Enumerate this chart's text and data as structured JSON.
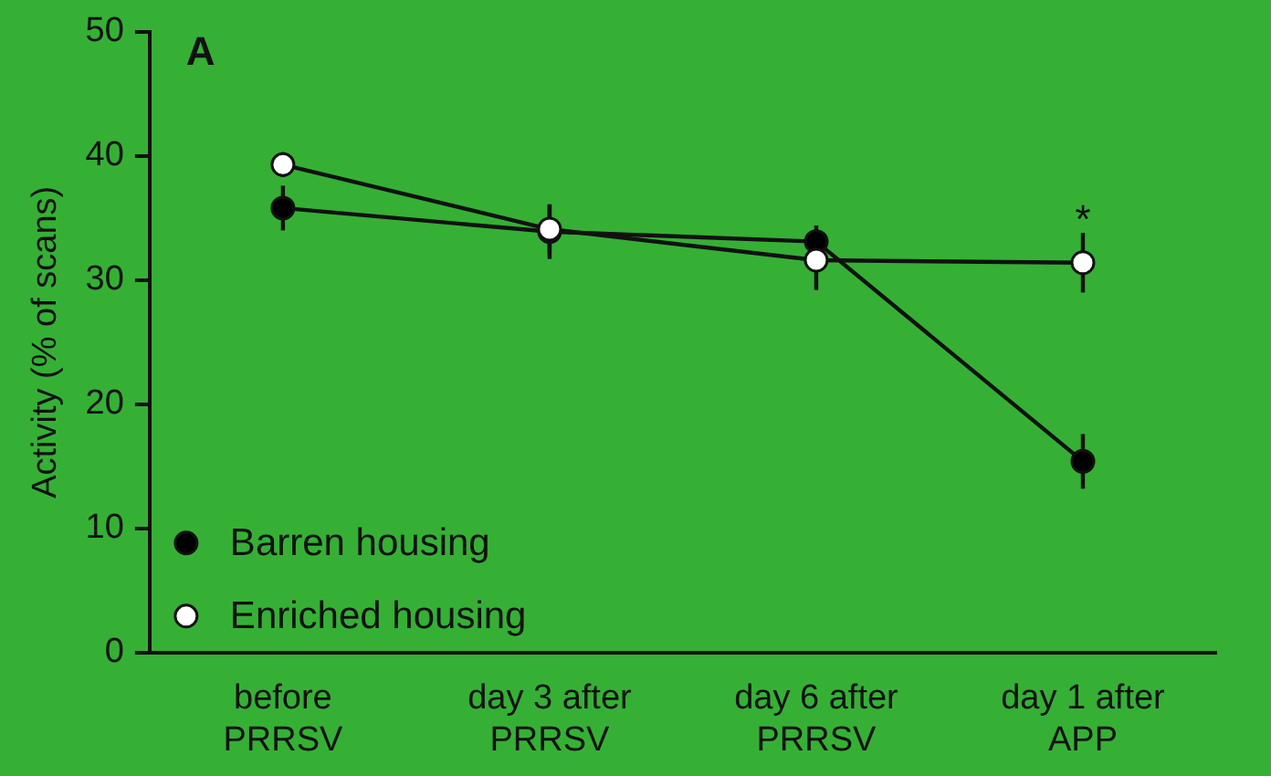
{
  "chart_data": {
    "type": "line",
    "ylabel": "Activity (% of scans)",
    "categories": [
      "before PRRSV",
      "day 3 after PRRSV",
      "day 6 after PRRSV",
      "day 1 after APP"
    ],
    "series": [
      {
        "name": "Barren housing",
        "color": "#000000",
        "values": [
          35.8,
          33.9,
          33.1,
          15.4
        ],
        "errors": [
          1.8,
          2.2,
          1.3,
          2.2
        ]
      },
      {
        "name": "Enriched housing",
        "color": "#ffffff",
        "values": [
          39.3,
          34.1,
          31.6,
          31.4
        ],
        "errors": [
          1.0,
          2.0,
          2.4,
          2.4
        ]
      }
    ],
    "ylim": [
      0,
      50
    ],
    "yticks": [
      0,
      10,
      20,
      30,
      40,
      50
    ],
    "annotations": [
      "A",
      "*"
    ],
    "legend": "bottom left",
    "marker": "circle",
    "line_style": "solid",
    "grid": false
  }
}
